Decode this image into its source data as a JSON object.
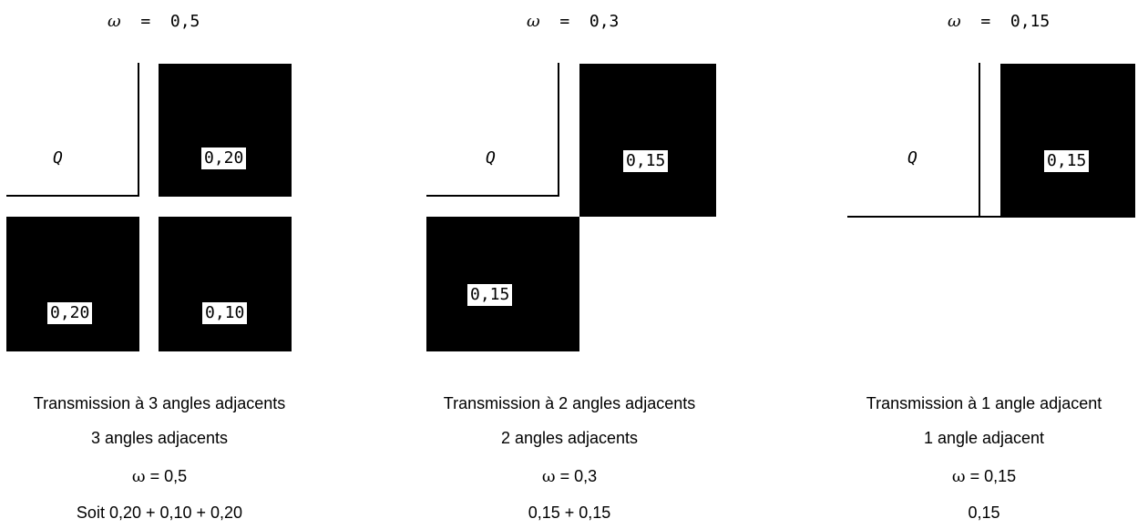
{
  "panels": [
    {
      "omega_symbol": "ω",
      "omega_value": "=  0,5",
      "area_label": "Q",
      "values": [
        "0,20",
        "0,20",
        "0,10"
      ],
      "caption_title": "Transmission à 3 angles adjacents",
      "caption_count": "3 angles adjacents",
      "caption_omega_symbol": "ω",
      "caption_omega_value": "= 0,5",
      "caption_sum": "Soit 0,20 + 0,10 + 0,20"
    },
    {
      "omega_symbol": "ω",
      "omega_value": "=  0,3",
      "area_label": "Q",
      "values": [
        "0,15",
        "0,15"
      ],
      "caption_title": "Transmission à 2 angles adjacents",
      "caption_count": "2 angles adjacents",
      "caption_omega_symbol": "ω",
      "caption_omega_value": "= 0,3",
      "caption_sum": "0,15 + 0,15"
    },
    {
      "omega_symbol": "ω",
      "omega_value": "=  0,15",
      "area_label": "Q",
      "values": [
        "0,15"
      ],
      "caption_title": "Transmission à 1 angle adjacent",
      "caption_count": "1 angle adjacent",
      "caption_omega_symbol": "ω",
      "caption_omega_value": "= 0,15",
      "caption_sum": "0,15"
    }
  ],
  "colors": {
    "fill": "#000000",
    "background": "#ffffff"
  }
}
